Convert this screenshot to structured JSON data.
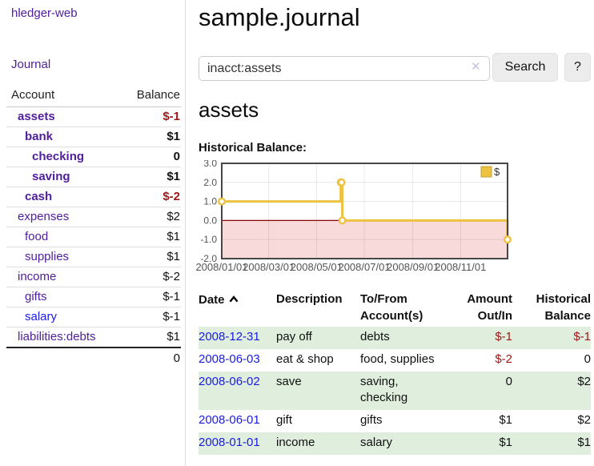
{
  "colors": {
    "purple": "#50209d",
    "link_blue": "#1b1be0",
    "negative_bold": "#9e1616",
    "negative_muted": "#b96a6a",
    "row_green": "#dfeedd",
    "series_gold": "#edc240",
    "negative_region_pink": "#f9dada",
    "zero_line_red": "#8b0000"
  },
  "sidebar": {
    "brand": "hledger-web",
    "journal_link": "Journal",
    "accounts_table": {
      "headers": {
        "account": "Account",
        "balance": "Balance"
      },
      "rows": [
        {
          "name": "assets",
          "balance": "$-1",
          "depth": 1,
          "bold": true,
          "negative": true,
          "blue": false
        },
        {
          "name": "bank",
          "balance": "$1",
          "depth": 2,
          "bold": true,
          "negative": false,
          "blue": false
        },
        {
          "name": "checking",
          "balance": "0",
          "depth": 3,
          "bold": true,
          "negative": false,
          "blue": false
        },
        {
          "name": "saving",
          "balance": "$1",
          "depth": 3,
          "bold": true,
          "negative": false,
          "blue": false
        },
        {
          "name": "cash",
          "balance": "$-2",
          "depth": 2,
          "bold": true,
          "negative": true,
          "blue": false
        },
        {
          "name": "expenses",
          "balance": "$2",
          "depth": 1,
          "bold": false,
          "negative": false,
          "blue": false
        },
        {
          "name": "food",
          "balance": "$1",
          "depth": 2,
          "bold": false,
          "negative": false,
          "blue": false
        },
        {
          "name": "supplies",
          "balance": "$1",
          "depth": 2,
          "bold": false,
          "negative": false,
          "blue": false
        },
        {
          "name": "income",
          "balance": "$-2",
          "depth": 1,
          "bold": false,
          "negative": true,
          "blue": false
        },
        {
          "name": "gifts",
          "balance": "$-1",
          "depth": 2,
          "bold": false,
          "negative": true,
          "blue": false
        },
        {
          "name": "salary",
          "balance": "$-1",
          "depth": 2,
          "bold": false,
          "negative": true,
          "blue": true
        },
        {
          "name": "liabilities:debts",
          "balance": "$1",
          "depth": 1,
          "bold": false,
          "negative": false,
          "blue": false
        }
      ],
      "total": "0"
    }
  },
  "header": {
    "title": "sample.journal"
  },
  "search": {
    "value": "inacct:assets",
    "clear_icon": "✕",
    "button_label": "Search",
    "help_label": "?"
  },
  "account_page": {
    "title": "assets",
    "chart_label": "Historical Balance:"
  },
  "chart_data": {
    "type": "line",
    "step": true,
    "legend": {
      "label": "$",
      "position": "top-right"
    },
    "xlim": [
      "2008-01-01",
      "2008-12-31"
    ],
    "ylim": [
      -2,
      3
    ],
    "y_ticks": [
      {
        "value": 3,
        "label": "3.0"
      },
      {
        "value": 2,
        "label": "2.0"
      },
      {
        "value": 1,
        "label": "1.0"
      },
      {
        "value": 0,
        "label": "0.0"
      },
      {
        "value": -1,
        "label": "-1.0"
      },
      {
        "value": -2,
        "label": "-2.0"
      }
    ],
    "x_ticks": [
      {
        "date": "2008-01-01",
        "label": "2008/01/01"
      },
      {
        "date": "2008-03-01",
        "label": "2008/03/01"
      },
      {
        "date": "2008-05-01",
        "label": "2008/05/01"
      },
      {
        "date": "2008-07-01",
        "label": "2008/07/01"
      },
      {
        "date": "2008-09-01",
        "label": "2008/09/01"
      },
      {
        "date": "2008-11-01",
        "label": "2008/11/01"
      }
    ],
    "series": [
      {
        "name": "$",
        "points": [
          {
            "date": "2008-01-01",
            "value": 1
          },
          {
            "date": "2008-06-01",
            "value": 2
          },
          {
            "date": "2008-06-02",
            "value": 2
          },
          {
            "date": "2008-06-03",
            "value": 0
          },
          {
            "date": "2008-12-31",
            "value": -1
          }
        ]
      }
    ],
    "negative_region_shaded": true
  },
  "register": {
    "columns": {
      "date": "Date",
      "description": "Description",
      "accounts": "To/From Account(s)",
      "amount": "Amount Out/In",
      "balance": "Historical Balance"
    },
    "sort": "ascending",
    "rows": [
      {
        "date": "2008-12-31",
        "description": "pay off",
        "accounts": "debts",
        "amount": "$-1",
        "balance": "$-1"
      },
      {
        "date": "2008-06-03",
        "description": "eat & shop",
        "accounts": "food, supplies",
        "amount": "$-2",
        "balance": "0"
      },
      {
        "date": "2008-06-02",
        "description": "save",
        "accounts": "saving,\nchecking",
        "amount": "0",
        "balance": "$2"
      },
      {
        "date": "2008-06-01",
        "description": "gift",
        "accounts": "gifts",
        "amount": "$1",
        "balance": "$2"
      },
      {
        "date": "2008-01-01",
        "description": "income",
        "accounts": "salary",
        "amount": "$1",
        "balance": "$1"
      }
    ]
  }
}
